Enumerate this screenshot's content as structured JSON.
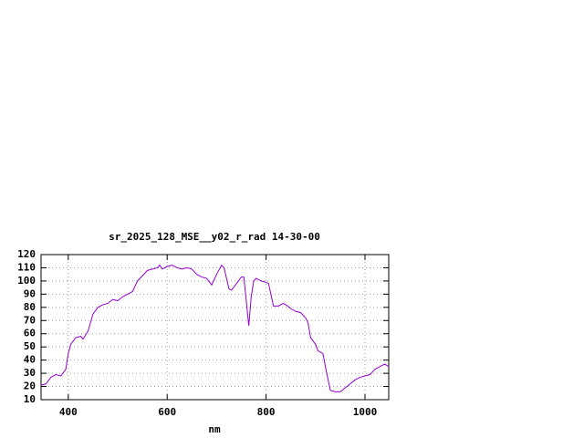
{
  "chart_data": {
    "type": "line",
    "title": "sr_2025_128_MSE__y02_r_rad 14-30-00",
    "x_label": "nm",
    "x": [
      345,
      355,
      365,
      375,
      385,
      395,
      400,
      405,
      415,
      425,
      430,
      440,
      450,
      460,
      470,
      480,
      490,
      500,
      510,
      520,
      530,
      540,
      550,
      560,
      570,
      580,
      585,
      590,
      600,
      610,
      620,
      630,
      640,
      650,
      660,
      670,
      680,
      690,
      700,
      710,
      715,
      720,
      725,
      730,
      740,
      750,
      755,
      760,
      765,
      770,
      775,
      780,
      790,
      800,
      805,
      815,
      825,
      835,
      840,
      850,
      860,
      870,
      880,
      885,
      890,
      900,
      905,
      915,
      920,
      930,
      940,
      950,
      960,
      970,
      980,
      990,
      1000,
      1010,
      1020,
      1030,
      1040,
      1048
    ],
    "values": [
      21,
      22,
      27,
      29,
      28,
      33,
      45,
      52,
      57,
      58,
      56,
      62,
      75,
      80,
      82,
      83,
      86,
      85,
      88,
      90,
      92,
      100,
      104,
      108,
      109,
      110,
      112,
      109,
      111,
      112,
      110,
      109,
      110,
      109,
      105,
      103,
      102,
      97,
      105,
      112,
      110,
      102,
      94,
      93,
      98,
      103,
      103,
      85,
      66,
      88,
      100,
      102,
      100,
      99,
      98,
      81,
      81,
      83,
      82,
      79,
      77,
      76,
      72,
      68,
      57,
      52,
      47,
      45,
      35,
      17,
      16,
      16,
      19,
      22,
      25,
      27,
      28,
      29,
      33,
      35,
      37,
      35
    ],
    "color": "#9400d3",
    "xlim": [
      345,
      1048
    ],
    "xticks": [
      400,
      600,
      800,
      1000
    ],
    "ylim": [
      10,
      120
    ],
    "yticks": [
      10,
      20,
      30,
      40,
      50,
      60,
      70,
      80,
      90,
      100,
      110,
      120
    ],
    "grid": true
  }
}
